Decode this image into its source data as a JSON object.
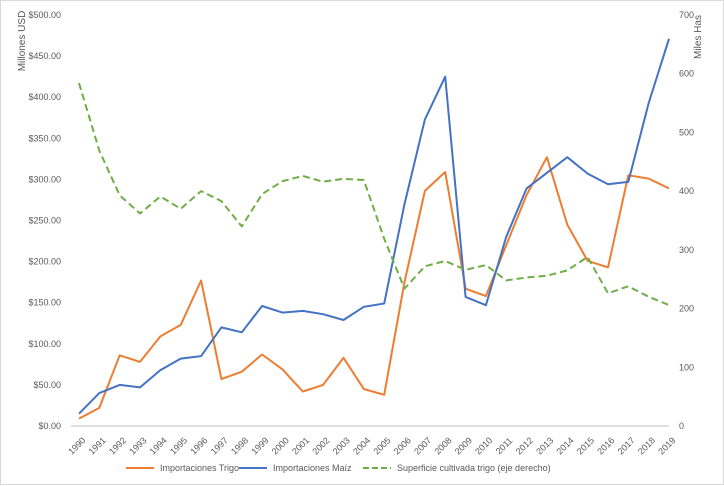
{
  "chart_data": {
    "type": "line",
    "title": "",
    "ylabel": "Millones USD",
    "ylabel_right": "Miles Has",
    "ylim": [
      0,
      500
    ],
    "ylim_right": [
      0,
      700
    ],
    "y_ticks": [
      "$0.00",
      "$50.00",
      "$100.00",
      "$150.00",
      "$200.00",
      "$250.00",
      "$300.00",
      "$350.00",
      "$400.00",
      "$450.00",
      "$500.00"
    ],
    "y_ticks_right": [
      "0",
      "100",
      "200",
      "300",
      "400",
      "500",
      "600",
      "700"
    ],
    "grid": "none",
    "legend_position": "bottom",
    "x": [
      "1990",
      "1991",
      "1992",
      "1993",
      "1994",
      "1995",
      "1996",
      "1997",
      "1998",
      "1999",
      "2000",
      "2001",
      "2002",
      "2003",
      "2004",
      "2005",
      "2006",
      "2007",
      "2008",
      "2009",
      "2010",
      "2011",
      "2012",
      "2013",
      "2014",
      "2015",
      "2016",
      "2017",
      "2018",
      "2019"
    ],
    "series": [
      {
        "name": "Importaciones Trigo",
        "axis": "left",
        "color": "#ED7D31",
        "dash": "solid",
        "values": [
          9,
          22,
          86,
          78,
          109,
          123,
          177,
          57,
          66,
          87,
          69,
          42,
          50,
          83,
          45,
          38,
          175,
          286,
          309,
          167,
          158,
          220,
          281,
          327,
          245,
          201,
          193,
          305,
          301,
          289
        ]
      },
      {
        "name": "Importaciones Maíz",
        "axis": "left",
        "color": "#4472C4",
        "dash": "solid",
        "values": [
          15,
          40,
          50,
          47,
          68,
          82,
          85,
          120,
          114,
          146,
          138,
          140,
          136,
          129,
          145,
          149,
          270,
          373,
          425,
          157,
          147,
          230,
          289,
          308,
          327,
          307,
          294,
          297,
          393,
          471
        ]
      },
      {
        "name": "Superficie cultivada trigo (eje derecho)",
        "axis": "right",
        "color": "#70AD47",
        "dash": "dashed",
        "values": [
          584,
          469,
          393,
          362,
          391,
          370,
          400,
          383,
          340,
          395,
          417,
          426,
          416,
          421,
          419,
          319,
          234,
          272,
          281,
          266,
          274,
          248,
          253,
          256,
          265,
          288,
          226,
          238,
          220,
          206
        ]
      }
    ]
  }
}
